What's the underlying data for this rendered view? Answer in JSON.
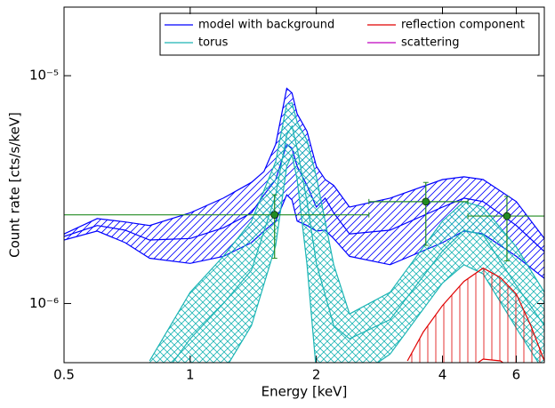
{
  "chart_data": {
    "type": "band",
    "xlabel": "Energy [keV]",
    "ylabel": "Count rate [cts/s/keV]",
    "xscale": "log",
    "yscale": "log",
    "xlim": [
      0.5,
      7
    ],
    "ylim": [
      5.5e-07,
      2e-05
    ],
    "xticks": [
      0.5,
      1,
      2,
      4,
      6
    ],
    "yticks": [
      {
        "value": 1e-06,
        "label": "10⁻⁶"
      },
      {
        "value": 1e-05,
        "label": "10⁻⁵"
      }
    ],
    "legend": "upper right",
    "legend_columns": 2,
    "series": [
      {
        "name": "model with background",
        "color": "#0000ff",
        "hatch": "diagonal",
        "x": [
          0.5,
          0.6,
          0.7,
          0.8,
          1.0,
          1.2,
          1.4,
          1.5,
          1.6,
          1.7,
          1.75,
          1.8,
          1.9,
          2.0,
          2.1,
          2.2,
          2.4,
          3,
          4,
          4.5,
          5,
          6,
          7
        ],
        "upper": [
          2.02e-06,
          2.36e-06,
          2.28e-06,
          2.2e-06,
          2.5e-06,
          2.9e-06,
          3.4e-06,
          3.8e-06,
          5e-06,
          8.8e-06,
          8.4e-06,
          6.8e-06,
          5.7e-06,
          4e-06,
          3.5e-06,
          3.3e-06,
          2.65e-06,
          2.9e-06,
          3.5e-06,
          3.6e-06,
          3.5e-06,
          2.8e-06,
          1.93e-06
        ],
        "values": [
          1.97e-06,
          2.2e-06,
          2.1e-06,
          1.9e-06,
          1.93e-06,
          2.15e-06,
          2.5e-06,
          3e-06,
          3.5e-06,
          5e-06,
          4.8e-06,
          4e-06,
          3.3e-06,
          2.65e-06,
          2.9e-06,
          2.5e-06,
          2.02e-06,
          2.1e-06,
          2.65e-06,
          2.9e-06,
          2.8e-06,
          2.2e-06,
          1.69e-06
        ],
        "lower": [
          1.9e-06,
          2.08e-06,
          1.85e-06,
          1.58e-06,
          1.5e-06,
          1.61e-06,
          1.85e-06,
          2.08e-06,
          2.3e-06,
          3e-06,
          2.85e-06,
          2.3e-06,
          2.2e-06,
          2.08e-06,
          2.1e-06,
          1.93e-06,
          1.61e-06,
          1.48e-06,
          1.85e-06,
          2.08e-06,
          2.02e-06,
          1.61e-06,
          1.29e-06
        ]
      },
      {
        "name": "torus",
        "color": "#1cb5b5",
        "hatch": "cross",
        "x": [
          0.8,
          1.0,
          1.2,
          1.4,
          1.6,
          1.7,
          1.75,
          1.8,
          1.9,
          2.0,
          2.2,
          2.4,
          3,
          4,
          4.5,
          5,
          6,
          7
        ],
        "upper": [
          5.6e-07,
          1.12e-06,
          1.61e-06,
          2.3e-06,
          4.2e-06,
          7.5e-06,
          7.6e-06,
          6.25e-06,
          5.2e-06,
          3.6e-06,
          1.48e-06,
          9e-07,
          1.12e-06,
          2.3e-06,
          2.8e-06,
          2.65e-06,
          1.77e-06,
          1.12e-06
        ],
        "values": [
          4e-07,
          7e-07,
          1e-06,
          1.4e-06,
          3e-06,
          5.5e-06,
          6e-06,
          4.8e-06,
          2.8e-06,
          1.5e-06,
          8e-07,
          7e-07,
          8.5e-07,
          1.7e-06,
          2.1e-06,
          2e-06,
          1.2e-06,
          8e-07
        ],
        "lower": [
          3e-07,
          4e-07,
          5e-07,
          8e-07,
          1.8e-06,
          4e-06,
          4.5e-06,
          3.5e-06,
          1.48e-06,
          5e-07,
          4.5e-07,
          4.5e-07,
          6e-07,
          1.23e-06,
          1.48e-06,
          1.35e-06,
          7.8e-07,
          5e-07
        ]
      },
      {
        "name": "reflection component",
        "color": "#e00000",
        "hatch": "vertical",
        "x": [
          3.3,
          3.6,
          4,
          4.5,
          5,
          5.5,
          6,
          6.5,
          7
        ],
        "upper": [
          5.6e-07,
          7.5e-07,
          9.8e-07,
          1.25e-06,
          1.43e-06,
          1.3e-06,
          1.1e-06,
          8e-07,
          5.6e-07
        ],
        "lower": [
          3e-07,
          3.5e-07,
          4.5e-07,
          5e-07,
          5.7e-07,
          5.6e-07,
          5e-07,
          4e-07,
          3e-07
        ]
      },
      {
        "name": "scattering",
        "color": "#bf00bf"
      }
    ],
    "points": {
      "color": "#228b22",
      "x": [
        1.59,
        3.65,
        5.7
      ],
      "xlow": [
        0.5,
        2.67,
        4.6
      ],
      "xhigh": [
        2.67,
        4.6,
        7
      ],
      "y": [
        2.45e-06,
        2.8e-06,
        2.42e-06
      ],
      "ylow": [
        1.58e-06,
        1.8e-06,
        1.54e-06
      ],
      "yhigh": [
        3e-06,
        3.4e-06,
        2.95e-06
      ]
    }
  }
}
